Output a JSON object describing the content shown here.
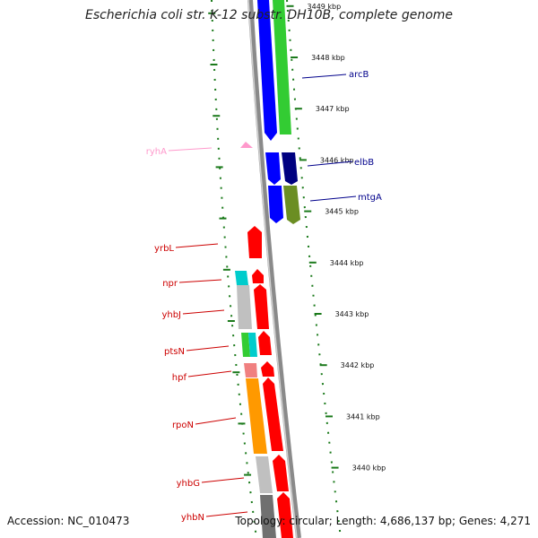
{
  "title": "Escherichia coli str. K-12 substr. DH10B, complete genome",
  "accession": "Accession: NC_010473",
  "topology": "Topology: circular; Length: 4,686,137 bp; Genes: 4,271",
  "colors": {
    "plus_strand_label": "#00008b",
    "minus_strand_label": "#cc0000",
    "rna_label": "#ff99cc",
    "scale_ticks": "#1b7a1b"
  },
  "scale_labels": [
    {
      "kbp": 3449,
      "label": "3449 kbp"
    },
    {
      "kbp": 3448,
      "label": "3448 kbp"
    },
    {
      "kbp": 3447,
      "label": "3447 kbp"
    },
    {
      "kbp": 3446,
      "label": "3446 kbp"
    },
    {
      "kbp": 3445,
      "label": "3445 kbp"
    },
    {
      "kbp": 3444,
      "label": "3444 kbp"
    },
    {
      "kbp": 3443,
      "label": "3443 kbp"
    },
    {
      "kbp": 3442,
      "label": "3442 kbp"
    },
    {
      "kbp": 3441,
      "label": "3441 kbp"
    },
    {
      "kbp": 3440,
      "label": "3440 kbp"
    }
  ],
  "genes": [
    {
      "name": "arcB",
      "strand": "+",
      "color": "#0000ff"
    },
    {
      "name": "elbB",
      "strand": "+",
      "color": "#0000ff"
    },
    {
      "name": "mtgA",
      "strand": "+",
      "color": "#0000ff"
    },
    {
      "name": "ryhA",
      "strand": "rna",
      "color": "#ff99cc"
    },
    {
      "name": "yrbL",
      "strand": "-",
      "color": "#ff0000"
    },
    {
      "name": "npr",
      "strand": "-",
      "color": "#ff0000"
    },
    {
      "name": "yhbJ",
      "strand": "-",
      "color": "#ff0000"
    },
    {
      "name": "ptsN",
      "strand": "-",
      "color": "#ff0000"
    },
    {
      "name": "hpf",
      "strand": "-",
      "color": "#ff0000"
    },
    {
      "name": "rpoN",
      "strand": "-",
      "color": "#ff0000"
    },
    {
      "name": "yhbG",
      "strand": "-",
      "color": "#ff0000"
    },
    {
      "name": "yhbN",
      "strand": "-",
      "color": "#ff0000"
    }
  ]
}
